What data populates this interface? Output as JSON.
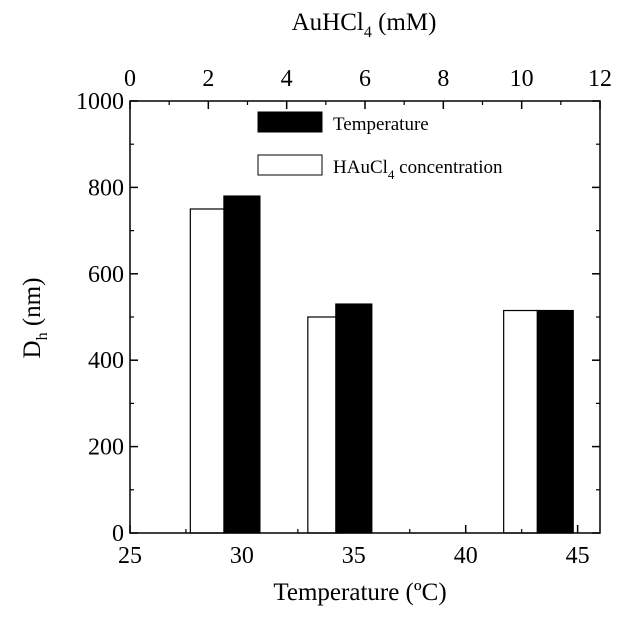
{
  "chart_data": {
    "type": "bar",
    "xlabel": "Temperature (ºC)",
    "x_ticks": [
      "25",
      "30",
      "35",
      "40",
      "45"
    ],
    "xlim": [
      25,
      46
    ],
    "top_axis": {
      "label_main": "AuHCl",
      "label_sub": "4",
      "label_tail": " (mM)",
      "ticks": [
        "0",
        "2",
        "4",
        "6",
        "8",
        "10",
        "12"
      ],
      "lim": [
        0,
        12
      ]
    },
    "ylabel_main": "D",
    "ylabel_sub": "h",
    "ylabel_tail": " (nm)",
    "y_ticks": [
      "0",
      "200",
      "400",
      "600",
      "800",
      "1000"
    ],
    "ylim": [
      0,
      1000
    ],
    "grid": false,
    "legend_position": "top-right",
    "series": [
      {
        "name": "HAuCl4 concentration",
        "legend_main": "HAuCl",
        "legend_sub": "4",
        "legend_tail": " concentration",
        "axis": "top",
        "fill": "#ffffff",
        "points": [
          {
            "x": 2,
            "y": 750
          },
          {
            "x": 5,
            "y": 500
          },
          {
            "x": 10,
            "y": 515
          }
        ]
      },
      {
        "name": "Temperature",
        "axis": "bottom",
        "fill": "#000000",
        "points": [
          {
            "x": 30,
            "y": 780
          },
          {
            "x": 35,
            "y": 530
          },
          {
            "x": 44,
            "y": 515
          }
        ]
      }
    ]
  }
}
